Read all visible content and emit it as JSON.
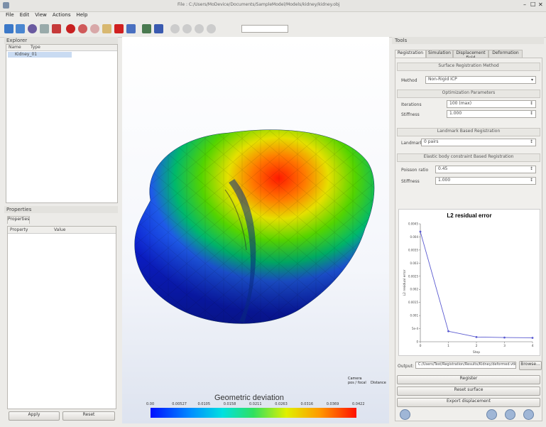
{
  "window": {
    "title": "File : C:/Users/MoDevice/Documents/SampleModel/Models/kidney/kidney.obj",
    "min_glyph": "–",
    "max_glyph": "□",
    "close_glyph": "✕"
  },
  "menu": [
    "File",
    "Edit",
    "View",
    "Actions",
    "Help"
  ],
  "explorer": {
    "title": "Explorer",
    "col_name": "Name",
    "col_type": "Type",
    "selected_item": "Kidney_01"
  },
  "properties": {
    "title": "Properties",
    "tab": "Properties",
    "col_property": "Property",
    "col_value": "Value",
    "apply_label": "Apply",
    "reset_label": "Reset"
  },
  "viewport": {
    "triad_labels": [
      "Camera",
      "pos / focal",
      "Distance"
    ],
    "colorbar_title": "Geometric deviation",
    "colorbar_ticks": [
      "0.00",
      "0.00527",
      "0.0105",
      "0.0158",
      "0.0211",
      "0.0263",
      "0.0316",
      "0.0369",
      "0.0422"
    ]
  },
  "right_panel": {
    "title": "Tools",
    "tabs": [
      "Registration",
      "Simulation",
      "Displacement field",
      "Deformation"
    ],
    "group_method": {
      "title": "Surface Registration Method",
      "label": "Method",
      "value": "Non-Rigid ICP"
    },
    "group_params": {
      "title": "Optimization Parameters",
      "row1_label": "Iterations",
      "row1_value": "100 (max)",
      "row2_label": "Stiffness",
      "row2_value": "1.000"
    },
    "group_landmarks": {
      "title": "Landmark Based Registration",
      "label": "Landmarks",
      "value": "0 pairs"
    },
    "group_elastic": {
      "title": "Elastic body constraint Based Registration",
      "row1_label": "Poisson ratio",
      "row1_value": "0.45",
      "row2_label": "Stiffness",
      "row2_value": "1.000"
    },
    "file_label": "Output:",
    "file_value": "C:/Users/Test/Registration/Results/Kidney/deformed.vtk",
    "browse_label": "Browse...",
    "buttons": [
      "Register",
      "Reset surface",
      "Export displacement"
    ]
  },
  "chart_data": {
    "type": "line",
    "title": "L2 residual error",
    "xlabel": "Step",
    "ylabel": "L2 residual error",
    "x": [
      0,
      1,
      2,
      3,
      4
    ],
    "series": [
      {
        "values": [
          0.0042,
          0.0004,
          0.00018,
          0.00016,
          0.00015
        ]
      }
    ],
    "xlim": [
      0,
      4
    ],
    "ylim": [
      0,
      0.0045
    ],
    "xticks": [
      "0",
      "1",
      "2",
      "3",
      "4"
    ],
    "yticks": [
      "0",
      "5e-4",
      "0.001",
      "0.0015",
      "0.002",
      "0.0025",
      "0.003",
      "0.0035",
      "0.004",
      "0.0045"
    ],
    "color": "#5a5ad0"
  }
}
